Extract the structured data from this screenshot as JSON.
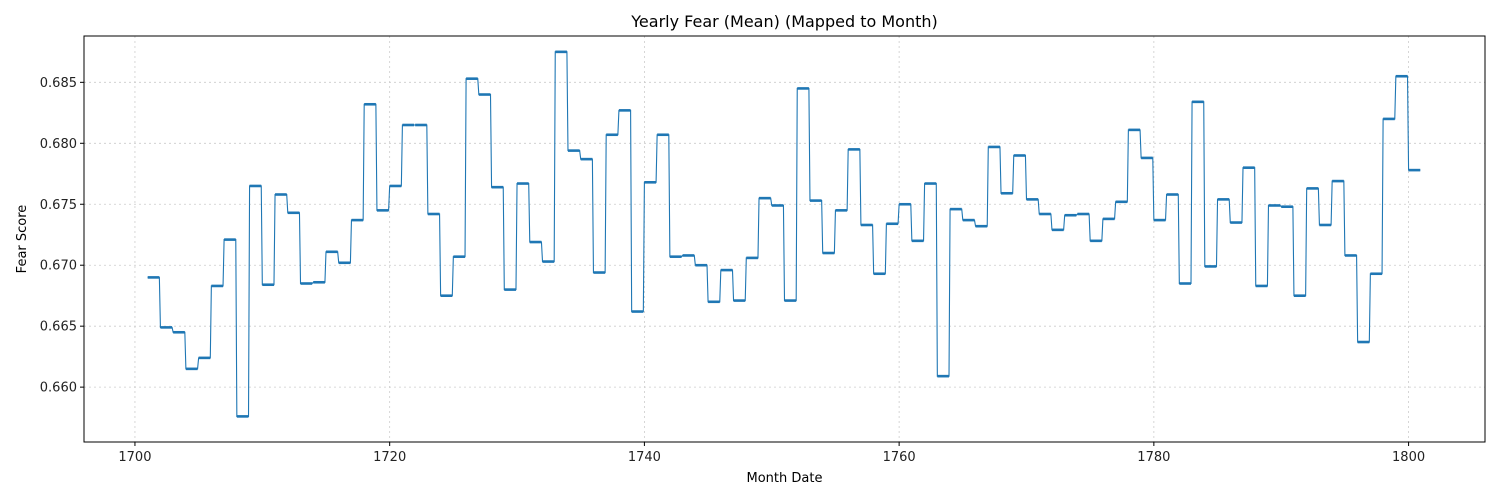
{
  "chart_data": {
    "type": "line",
    "title": "Yearly Fear (Mean) (Mapped to Month)",
    "xlabel": "Month Date",
    "ylabel": "Fear Score",
    "xlim": [
      1696,
      1806
    ],
    "ylim": [
      0.6555,
      0.6888
    ],
    "xticks": [
      1700,
      1720,
      1740,
      1760,
      1780,
      1800
    ],
    "yticks": [
      0.66,
      0.665,
      0.67,
      0.675,
      0.68,
      0.685
    ],
    "ytick_labels": [
      "0.660",
      "0.665",
      "0.670",
      "0.675",
      "0.680",
      "0.685"
    ],
    "grid": true,
    "legend": "none",
    "color": "#1f77b4",
    "step": "yearly",
    "series": [
      {
        "x": [
          1701,
          1702,
          1703,
          1704,
          1705,
          1706,
          1707,
          1708,
          1709,
          1710,
          1711,
          1712,
          1713,
          1714,
          1715,
          1716,
          1717,
          1718,
          1719,
          1720,
          1721,
          1722,
          1723,
          1724,
          1725,
          1726,
          1727,
          1728,
          1729,
          1730,
          1731,
          1732,
          1733,
          1734,
          1735,
          1736,
          1737,
          1738,
          1739,
          1740,
          1741,
          1742,
          1743,
          1744,
          1745,
          1746,
          1747,
          1748,
          1749,
          1750,
          1751,
          1752,
          1753,
          1754,
          1755,
          1756,
          1757,
          1758,
          1759,
          1760,
          1761,
          1762,
          1763,
          1764,
          1765,
          1766,
          1767,
          1768,
          1769,
          1770,
          1771,
          1772,
          1773,
          1774,
          1775,
          1776,
          1777,
          1778,
          1779,
          1780,
          1781,
          1782,
          1783,
          1784,
          1785,
          1786,
          1787,
          1788,
          1789,
          1790,
          1791,
          1792,
          1793,
          1794,
          1795,
          1796,
          1797,
          1798,
          1799,
          1800
        ],
        "values": [
          0.669,
          0.6649,
          0.6645,
          0.6615,
          0.6624,
          0.6683,
          0.6721,
          0.6576,
          0.6765,
          0.6684,
          0.6758,
          0.6743,
          0.6685,
          0.6686,
          0.6711,
          0.6702,
          0.6737,
          0.6832,
          0.6745,
          0.6765,
          0.6815,
          0.6815,
          0.6742,
          0.6675,
          0.6707,
          0.6853,
          0.684,
          0.6764,
          0.668,
          0.6767,
          0.6719,
          0.6703,
          0.6875,
          0.6794,
          0.6787,
          0.6694,
          0.6807,
          0.6827,
          0.6662,
          0.6768,
          0.6807,
          0.6707,
          0.6708,
          0.67,
          0.667,
          0.6696,
          0.6671,
          0.6706,
          0.6755,
          0.6749,
          0.6671,
          0.6845,
          0.6753,
          0.671,
          0.6745,
          0.6795,
          0.6733,
          0.6693,
          0.6734,
          0.675,
          0.672,
          0.6767,
          0.6609,
          0.6746,
          0.6737,
          0.6732,
          0.6797,
          0.6759,
          0.679,
          0.6754,
          0.6742,
          0.6729,
          0.6741,
          0.6742,
          0.672,
          0.6738,
          0.6752,
          0.6811,
          0.6788,
          0.6737,
          0.6758,
          0.6685,
          0.6834,
          0.6699,
          0.6754,
          0.6735,
          0.678,
          0.6683,
          0.6749,
          0.6748,
          0.6675,
          0.6763,
          0.6733,
          0.6769,
          0.6708,
          0.6637,
          0.6693,
          0.682,
          0.6855,
          0.6778
        ]
      }
    ]
  }
}
